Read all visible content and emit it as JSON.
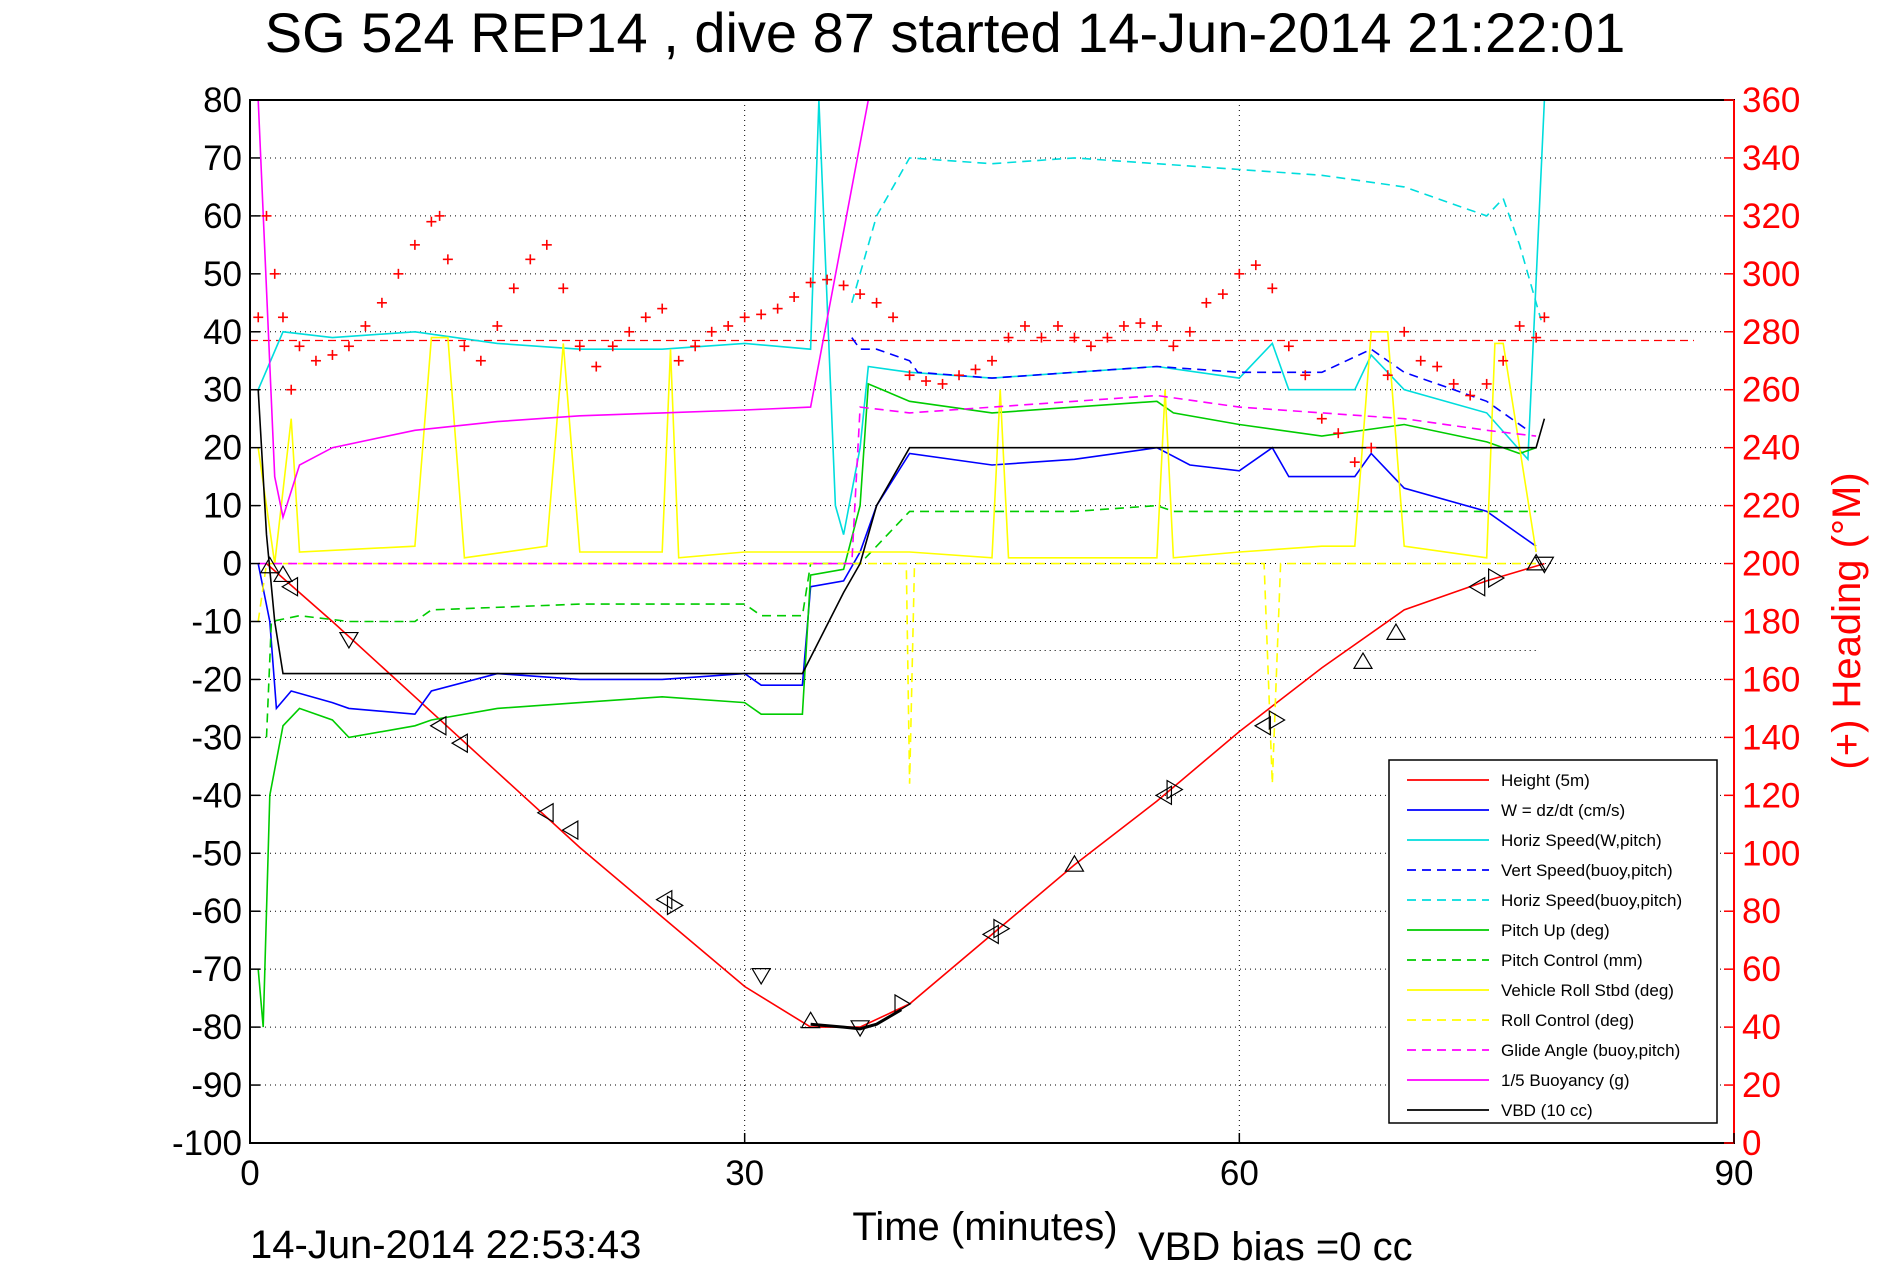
{
  "chart_data": {
    "type": "line",
    "title": "SG 524   REP14  , dive 87 started 14-Jun-2014 21:22:01",
    "xlabel": "Time (minutes)",
    "ylabel_right": "(+) Heading (°M)",
    "xlim": [
      0,
      90
    ],
    "ylim": [
      -100,
      80
    ],
    "ylim_right": [
      0,
      360
    ],
    "x_ticks": [
      "0",
      "30",
      "60",
      "90"
    ],
    "y_ticks": [
      "80",
      "70",
      "60",
      "50",
      "40",
      "30",
      "20",
      "10",
      "0",
      "-10",
      "-20",
      "-30",
      "-40",
      "-50",
      "-60",
      "-70",
      "-80",
      "-90",
      "-100"
    ],
    "y_ticks_right": [
      "360",
      "340",
      "320",
      "300",
      "280",
      "260",
      "240",
      "220",
      "200",
      "180",
      "160",
      "140",
      "120",
      "100",
      "80",
      "60",
      "40",
      "20",
      "0"
    ],
    "grid": true,
    "legend_position": "bottom-right",
    "footer_left": "14-Jun-2014 22:53:43",
    "footer_right": "VBD bias =0 cc",
    "series": [
      {
        "name": "Height (5m)",
        "color": "#ff0000",
        "style": "solid",
        "x": [
          1,
          5,
          10,
          15,
          20,
          25,
          30,
          34,
          37,
          40,
          45,
          50,
          55,
          60,
          65,
          70,
          75,
          78.5
        ],
        "y": [
          0,
          -10,
          -23,
          -36,
          -49,
          -61,
          -73,
          -80,
          -80,
          -76,
          -64,
          -52,
          -41,
          -29,
          -18,
          -8,
          -3,
          0
        ]
      },
      {
        "name": "W = dz/dt (cm/s)",
        "color": "#0000ff",
        "style": "solid",
        "x": [
          0.5,
          1.2,
          1.6,
          2.5,
          5,
          6,
          10,
          11,
          15,
          20,
          25,
          30,
          31,
          33.5,
          34,
          36,
          37,
          38,
          40,
          45,
          50,
          55,
          57,
          60,
          62,
          63,
          67,
          68,
          70,
          75,
          77,
          78
        ],
        "y": [
          0,
          -10,
          -25,
          -22,
          -24,
          -25,
          -26,
          -22,
          -19,
          -20,
          -20,
          -19,
          -21,
          -21,
          -4,
          -3,
          2,
          10,
          19,
          17,
          18,
          20,
          17,
          16,
          20,
          15,
          15,
          19,
          13,
          9,
          5,
          3
        ]
      },
      {
        "name": "Horiz Speed(W,pitch)",
        "color": "#00dddd",
        "style": "solid",
        "x": [
          0.5,
          2,
          5,
          10,
          15,
          20,
          25,
          30,
          34,
          34.5,
          35.5,
          36,
          37,
          37.5,
          40,
          45,
          50,
          55,
          60,
          62,
          63,
          67,
          68,
          70,
          75,
          77.5,
          78.5
        ],
        "y": [
          30,
          40,
          39,
          40,
          38,
          37,
          37,
          38,
          37,
          80,
          10,
          5,
          20,
          34,
          33,
          32,
          33,
          34,
          32,
          38,
          30,
          30,
          36,
          30,
          26,
          18,
          80
        ]
      },
      {
        "name": "Vert Speed(buoy,pitch)",
        "color": "#0000ff",
        "style": "dashed",
        "x": [
          36.5,
          37,
          38,
          40,
          40.5,
          45,
          50,
          55,
          60,
          65,
          68,
          70,
          75,
          77.5
        ],
        "y": [
          39,
          37,
          37,
          35,
          33,
          32,
          33,
          34,
          33,
          33,
          37,
          33,
          28,
          23
        ]
      },
      {
        "name": "Horiz Speed(buoy,pitch)",
        "color": "#00dddd",
        "style": "dashed",
        "x": [
          36.5,
          38,
          40,
          45,
          50,
          55,
          60,
          65,
          70,
          75,
          76,
          77,
          78.3
        ],
        "y": [
          45,
          60,
          70,
          69,
          70,
          69,
          68,
          67,
          65,
          60,
          63,
          55,
          42
        ]
      },
      {
        "name": "Pitch Up (deg)",
        "color": "#00cc00",
        "style": "solid",
        "x": [
          0.5,
          0.8,
          1.2,
          2,
          3,
          5,
          6,
          10,
          11,
          15,
          20,
          25,
          30,
          31,
          33.5,
          34,
          36,
          37,
          37.5,
          40,
          45,
          50,
          55,
          56,
          60,
          65,
          70,
          75,
          77,
          78
        ],
        "y": [
          -70,
          -80,
          -40,
          -28,
          -25,
          -27,
          -30,
          -28,
          -27,
          -25,
          -24,
          -23,
          -24,
          -26,
          -26,
          -2,
          -1,
          10,
          31,
          28,
          26,
          27,
          28,
          26,
          24,
          22,
          24,
          21,
          19,
          20
        ]
      },
      {
        "name": "Pitch Control (mm)",
        "color": "#00cc00",
        "style": "dashed",
        "x": [
          1,
          1.3,
          3,
          6,
          10,
          11,
          20,
          30,
          31,
          33.5,
          34,
          37,
          40,
          45,
          50,
          55,
          56,
          60,
          65,
          70,
          75,
          78
        ],
        "y": [
          -30,
          -10,
          -9,
          -10,
          -10,
          -8,
          -7,
          -7,
          -9,
          -9,
          0,
          0,
          9,
          9,
          9,
          10,
          9,
          9,
          9,
          9,
          9,
          9
        ]
      },
      {
        "name": "Vehicle Roll Stbd (deg)",
        "color": "#ffff00",
        "style": "solid",
        "x": [
          0.5,
          1.5,
          2.5,
          3,
          10,
          11,
          12,
          13,
          18,
          19,
          20,
          25,
          25.5,
          26,
          30,
          34,
          37,
          38,
          40,
          45,
          45.5,
          46,
          55,
          55.5,
          56,
          60,
          65,
          67,
          68,
          69,
          70,
          75,
          75.5,
          76,
          78
        ],
        "y": [
          20,
          0,
          25,
          2,
          3,
          39,
          39,
          1,
          3,
          38,
          2,
          2,
          37,
          1,
          2,
          2,
          2,
          2,
          2,
          1,
          30,
          1,
          1,
          30,
          1,
          2,
          3,
          3,
          40,
          40,
          3,
          1,
          38,
          38,
          2
        ]
      },
      {
        "name": "Roll Control (deg)",
        "color": "#ffff00",
        "style": "dashed",
        "x": [
          0.5,
          1,
          2,
          5,
          10,
          20,
          30,
          39.8,
          40,
          40.3,
          45,
          50,
          60,
          61.5,
          62,
          62.5,
          65,
          70,
          75,
          78
        ],
        "y": [
          -10,
          0,
          0,
          0,
          0,
          0,
          0,
          0,
          -38,
          0,
          0,
          0,
          0,
          0,
          -38,
          0,
          0,
          0,
          0,
          0
        ]
      },
      {
        "name": "Glide Angle (buoy,pitch)",
        "color": "#ff00ff",
        "style": "dashed",
        "x": [
          0.5,
          30,
          36.5,
          37,
          40,
          45,
          50,
          55,
          60,
          65,
          70,
          75,
          78
        ],
        "y": [
          0,
          0,
          0,
          27,
          26,
          27,
          28,
          29,
          27,
          26,
          25,
          23,
          22
        ]
      },
      {
        "name": "1/5 Buoyancy (g)",
        "color": "#ff00ff",
        "style": "solid",
        "x": [
          0.5,
          1.5,
          2,
          3,
          5,
          10,
          15,
          20,
          25,
          30,
          34,
          37.5
        ],
        "y": [
          80,
          15,
          8,
          17,
          20,
          23,
          24.5,
          25.5,
          26,
          26.5,
          27,
          80
        ]
      },
      {
        "name": "VBD (10 cc)",
        "color": "#000000",
        "style": "solid",
        "x": [
          0.5,
          1,
          1.5,
          2,
          5,
          10,
          20,
          30,
          33.5,
          36,
          37,
          38,
          40,
          45,
          50,
          60,
          70,
          75,
          78,
          78.5
        ],
        "y": [
          30,
          5,
          -10,
          -19,
          -19,
          -19,
          -19,
          -19,
          -19,
          -5,
          0,
          10,
          20,
          20,
          20,
          20,
          20,
          20,
          20,
          25
        ]
      }
    ],
    "heading_series": {
      "marker": "+",
      "color": "#ff0000",
      "axis": "right",
      "x": [
        0.5,
        1,
        1.5,
        2,
        2.5,
        3,
        4,
        5,
        6,
        7,
        8,
        9,
        10,
        11,
        11.5,
        12,
        13,
        14,
        15,
        16,
        17,
        18,
        19,
        20,
        21,
        22,
        23,
        24,
        25,
        26,
        27,
        28,
        29,
        30,
        31,
        32,
        33,
        34,
        35,
        36,
        37,
        38,
        39,
        40,
        41,
        42,
        43,
        44,
        45,
        46,
        47,
        48,
        49,
        50,
        51,
        52,
        53,
        54,
        55,
        56,
        57,
        58,
        59,
        60,
        61,
        62,
        63,
        64,
        65,
        66,
        67,
        68,
        69,
        70,
        71,
        72,
        73,
        74,
        75,
        76,
        77,
        78,
        78.5
      ],
      "y": [
        285,
        320,
        300,
        285,
        260,
        275,
        270,
        272,
        275,
        282,
        290,
        300,
        310,
        318,
        320,
        305,
        275,
        270,
        282,
        295,
        305,
        310,
        295,
        275,
        268,
        275,
        280,
        285,
        288,
        270,
        275,
        280,
        282,
        285,
        286,
        288,
        292,
        297,
        298,
        296,
        293,
        290,
        285,
        265,
        263,
        262,
        265,
        267,
        270,
        278,
        282,
        278,
        282,
        278,
        275,
        278,
        282,
        283,
        282,
        275,
        280,
        290,
        293,
        300,
        303,
        295,
        275,
        265,
        250,
        245,
        235,
        240,
        265,
        280,
        270,
        268,
        262,
        258,
        262,
        270,
        282,
        278,
        285
      ]
    },
    "reference_lines": {
      "heading_target_deg": 277,
      "dotted_minus15_level": -15
    },
    "triangle_markers": {
      "color": "#000000",
      "x": [
        1.2,
        2,
        2.5,
        6,
        11.5,
        12.8,
        18,
        19.5,
        25.2,
        25.7,
        31,
        34,
        37,
        39.5,
        45,
        45.5,
        50,
        55.5,
        56,
        61.5,
        62.2,
        67.5,
        69.5,
        74.5,
        75.5,
        78,
        78.5
      ],
      "y": [
        -0.5,
        -2,
        -4,
        -13,
        -28,
        -31,
        -43,
        -46,
        -58,
        -59,
        -71,
        -79,
        -80,
        -76,
        -64,
        -63,
        -52,
        -40,
        -39,
        -28,
        -27,
        -17,
        -12,
        -4,
        -2.5,
        0,
        0
      ],
      "directions": [
        "up",
        "up",
        "left",
        "down",
        "left",
        "left",
        "left",
        "left",
        "left",
        "right",
        "down",
        "up",
        "down",
        "right",
        "left",
        "right",
        "up",
        "left",
        "right",
        "left",
        "right",
        "up",
        "up",
        "left",
        "right",
        "up",
        "down"
      ]
    }
  }
}
